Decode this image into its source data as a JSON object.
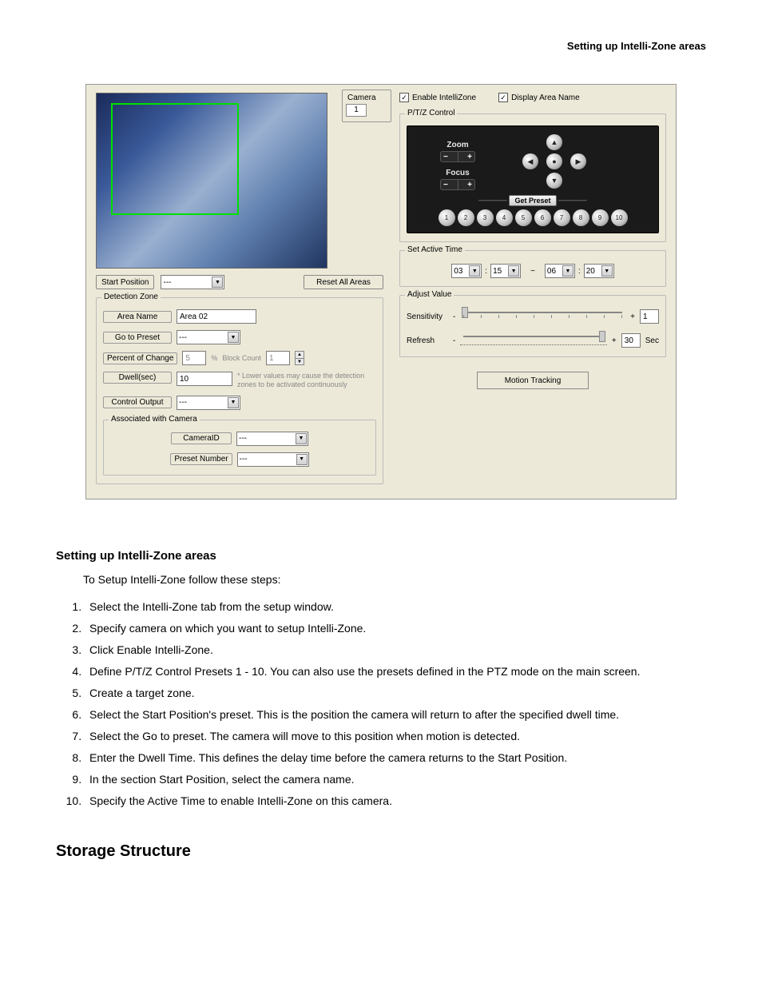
{
  "page": {
    "header": "Setting up Intelli-Zone areas",
    "section_title": "Setting up Intelli-Zone areas",
    "intro": "To Setup Intelli-Zone follow these steps:",
    "steps": [
      "Select the Intelli-Zone tab from the setup window.",
      "Specify camera on which you want to setup Intelli-Zone.",
      "Click Enable Intelli-Zone.",
      "Define P/T/Z Control Presets 1 - 10. You can also use the presets defined in the PTZ mode on the main screen.",
      "Create a target zone.",
      "Select the Start Position's preset. This is the position the camera will return to after the specified dwell time.",
      "Select the Go to preset. The camera will move to this position when motion is detected.",
      "Enter the Dwell Time. This defines the delay time before the camera returns to the Start Position.",
      "In the section Start Position, select the camera name.",
      "Specify the Active Time to enable Intelli-Zone on this camera."
    ],
    "heading2": "Storage Structure"
  },
  "ui": {
    "camera_group": {
      "label": "Camera",
      "value": "1"
    },
    "start_position": {
      "label": "Start Position",
      "value": "---",
      "reset_btn": "Reset All Areas"
    },
    "detection_zone": {
      "legend": "Detection Zone",
      "area_name": {
        "label": "Area Name",
        "value": "Area 02"
      },
      "go_to_preset": {
        "label": "Go to Preset",
        "value": "---"
      },
      "percent_change": {
        "label": "Percent of Change",
        "value": "5",
        "unit": "%"
      },
      "block_count": {
        "label": "Block Count",
        "value": "1"
      },
      "note": "* Lower values may cause the detection zones to be activated continuously",
      "dwell": {
        "label": "Dwell(sec)",
        "value": "10"
      },
      "control_output": {
        "label": "Control Output",
        "value": "---"
      },
      "assoc": {
        "legend": "Associated with Camera",
        "camera_id": {
          "label": "CameraID",
          "value": "---"
        },
        "preset_number": {
          "label": "Preset Number",
          "value": "---"
        }
      }
    },
    "checks": {
      "enable": "Enable IntelliZone",
      "display": "Display Area Name"
    },
    "ptz": {
      "legend": "P/T/Z Control",
      "zoom": "Zoom",
      "focus": "Focus",
      "get_preset": "Get Preset",
      "presets": [
        "1",
        "2",
        "3",
        "4",
        "5",
        "6",
        "7",
        "8",
        "9",
        "10"
      ]
    },
    "active_time": {
      "legend": "Set Active Time",
      "h1": "03",
      "m1": "15",
      "sep": "~",
      "h2": "06",
      "m2": "20"
    },
    "adjust": {
      "legend": "Adjust Value",
      "sensitivity": {
        "label": "Sensitivity",
        "value": "1"
      },
      "refresh": {
        "label": "Refresh",
        "value": "30",
        "unit": "Sec"
      }
    },
    "motion_tracking": "Motion Tracking"
  },
  "style": {
    "panel_bg": "#ece9d8",
    "zone_border": "#00e000",
    "ptz_bg": "#1a1a1a",
    "text_color": "#000000"
  }
}
